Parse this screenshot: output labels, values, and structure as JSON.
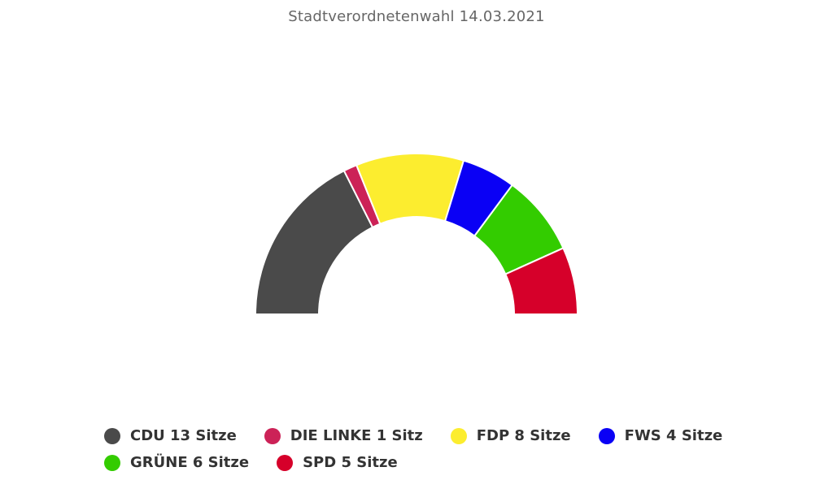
{
  "chart_data": {
    "type": "parliament-semicircle",
    "title": "Stadtverordnetenwahl 14.03.2021",
    "total_seats": 37,
    "series": [
      {
        "name": "CDU",
        "seats": 13,
        "color": "#4a4a4a",
        "legend_label": "CDU 13 Sitze"
      },
      {
        "name": "DIE LINKE",
        "seats": 1,
        "color": "#cc2257",
        "legend_label": "DIE LINKE 1 Sitz"
      },
      {
        "name": "FDP",
        "seats": 8,
        "color": "#fced2f",
        "legend_label": "FDP 8 Sitze"
      },
      {
        "name": "FWS",
        "seats": 4,
        "color": "#0a00f5",
        "legend_label": "FWS 4 Sitze"
      },
      {
        "name": "GRÜNE",
        "seats": 6,
        "color": "#33cc00",
        "legend_label": "GRÜNE 6 Sitze"
      },
      {
        "name": "SPD",
        "seats": 5,
        "color": "#d6002a",
        "legend_label": "SPD 5 Sitze"
      }
    ],
    "legend_placement": "bottom"
  }
}
